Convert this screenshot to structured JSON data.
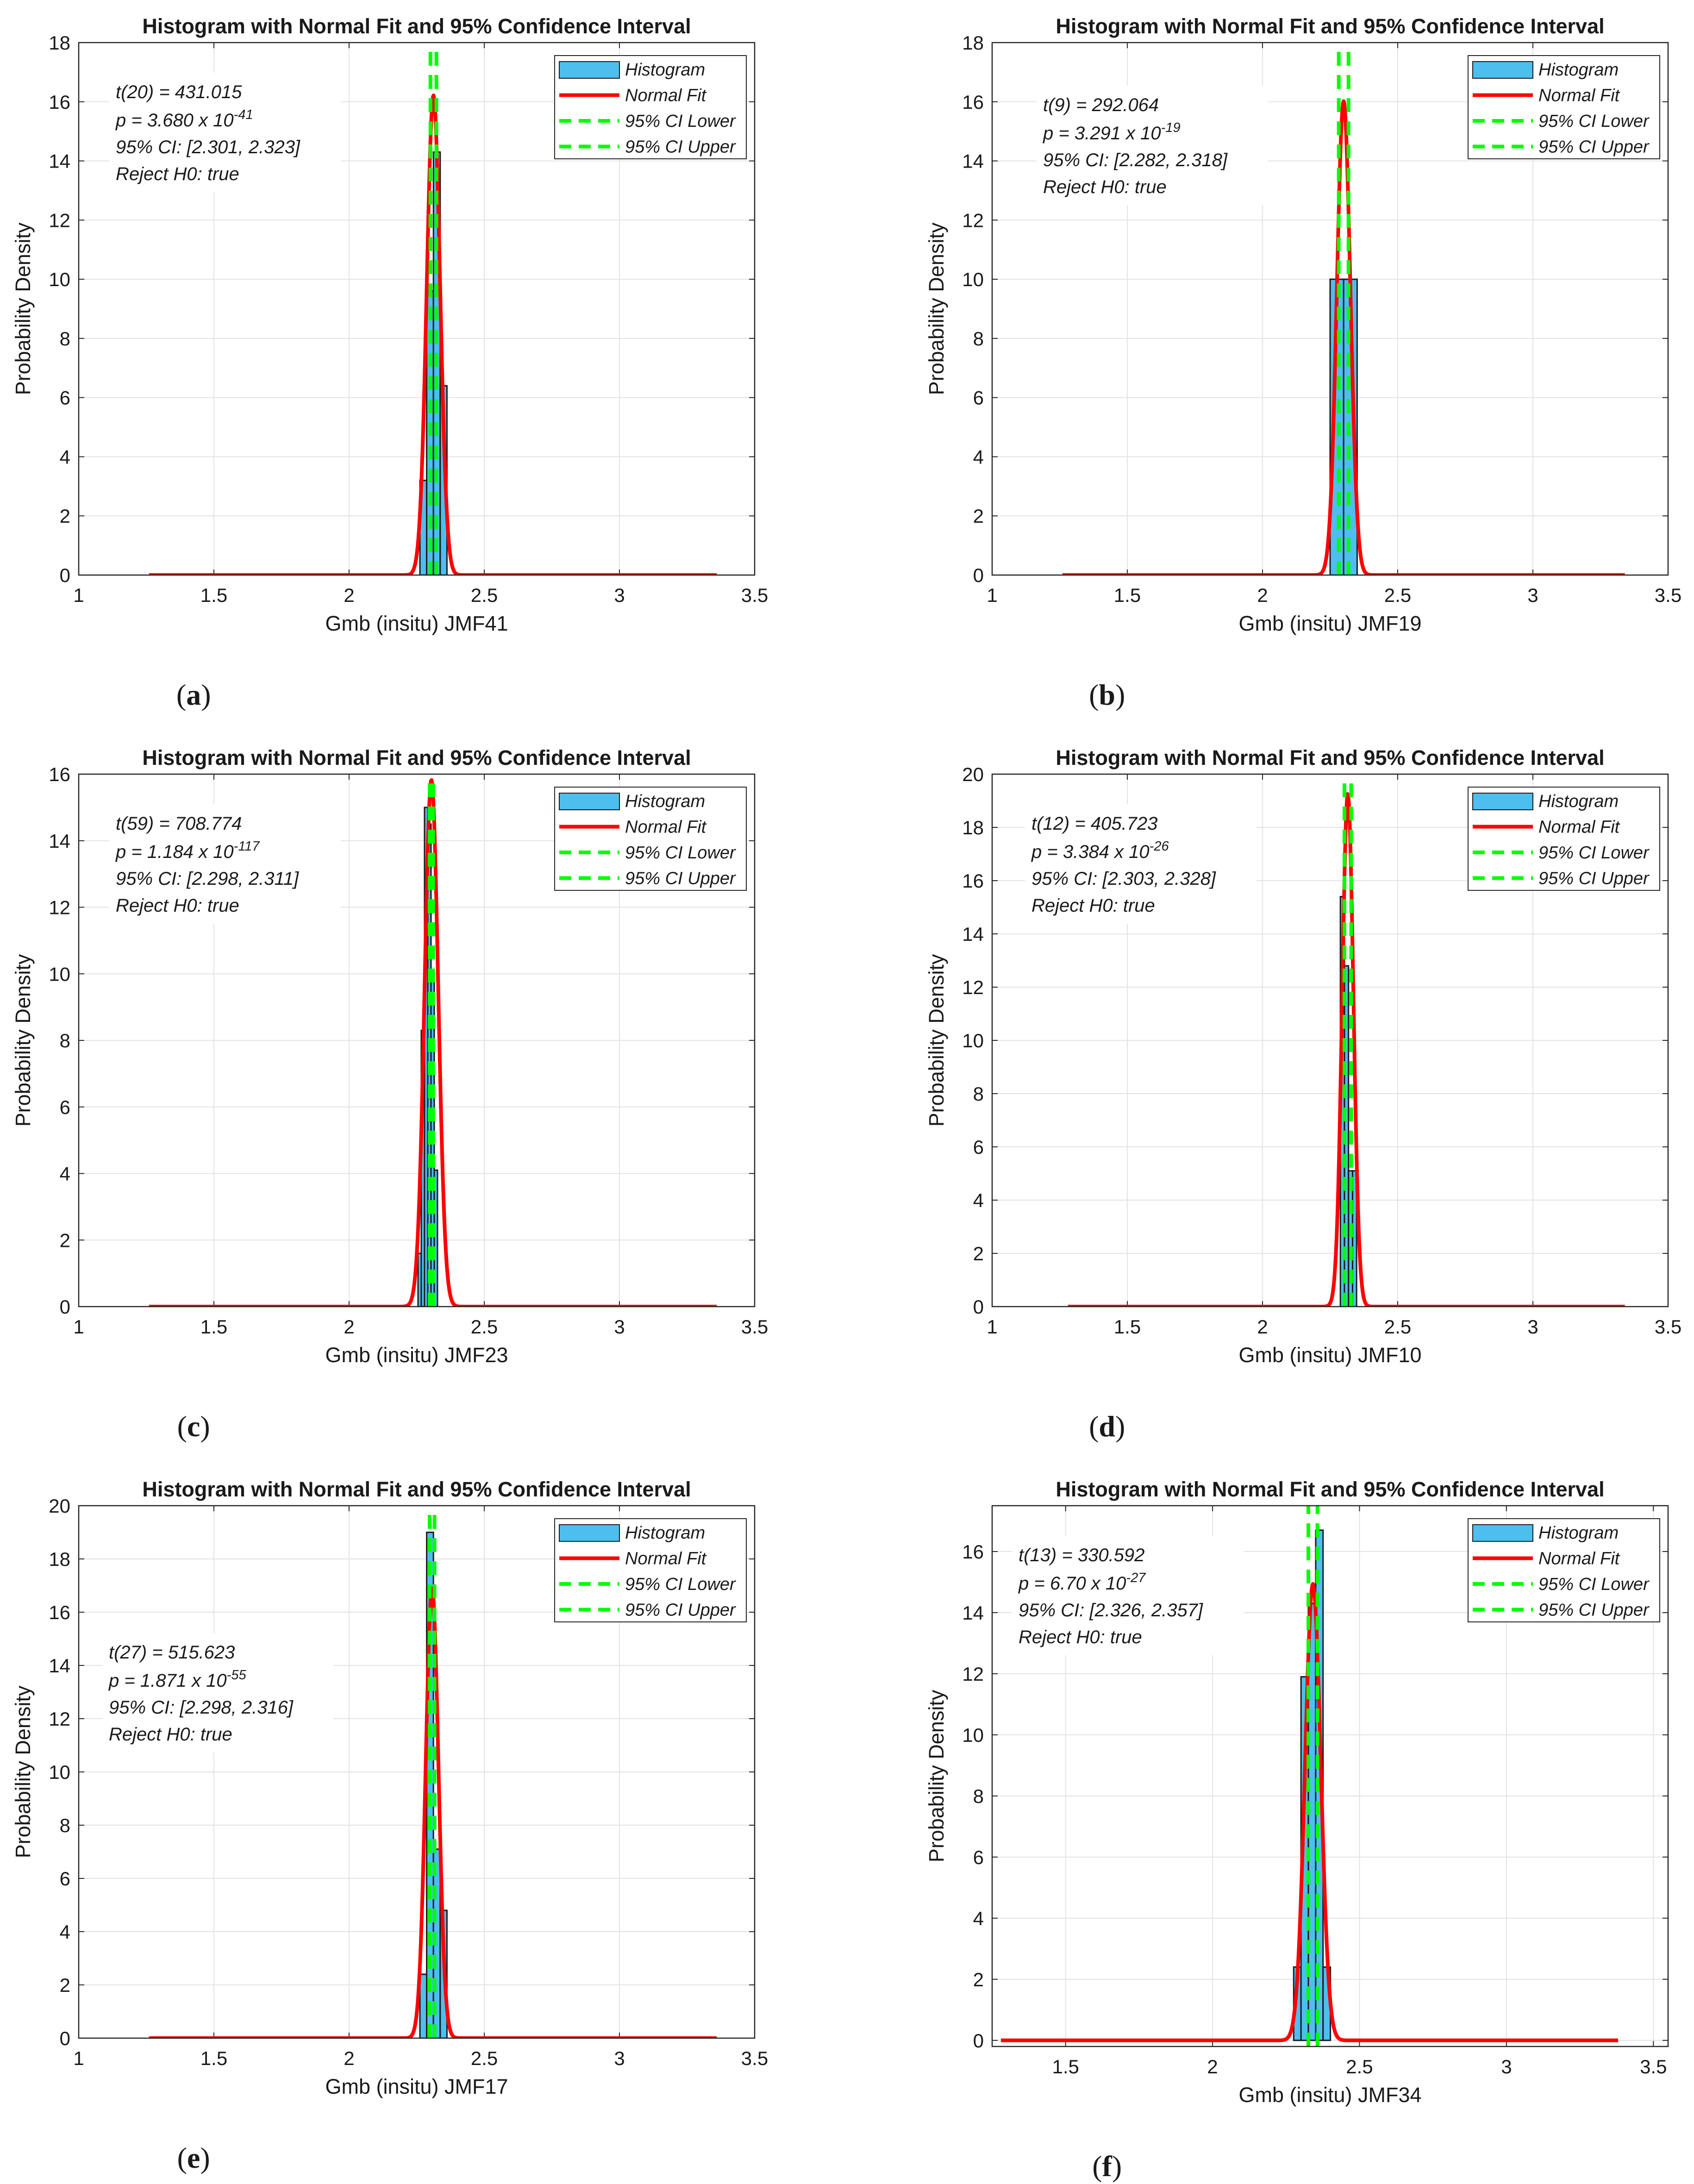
{
  "figure": {
    "panels": [
      {
        "label": "a",
        "ci_lower": 2.301,
        "ci_upper": 2.323
      },
      {
        "label": "b",
        "ci_lower": 2.282,
        "ci_upper": 2.318
      },
      {
        "label": "c",
        "ci_lower": 2.298,
        "ci_upper": 2.311
      },
      {
        "label": "d",
        "ci_lower": 2.303,
        "ci_upper": 2.328
      },
      {
        "label": "e",
        "ci_lower": 2.298,
        "ci_upper": 2.316
      },
      {
        "label": "f",
        "ci_lower": 2.326,
        "ci_upper": 2.357
      }
    ]
  },
  "chart_data": [
    {
      "type": "bar",
      "panel_label": "a",
      "title": "Histogram with Normal Fit and 95% Confidence Interval",
      "xlabel": "Gmb (insitu) JMF41",
      "ylabel": "Probability Density",
      "xlim": [
        1,
        3.5
      ],
      "ylim": [
        0,
        18
      ],
      "xticks": [
        "1",
        "1.5",
        "2",
        "2.5",
        "3",
        "3.5"
      ],
      "yticks": [
        "0",
        "2",
        "4",
        "6",
        "8",
        "10",
        "12",
        "14",
        "16",
        "18"
      ],
      "grid": true,
      "legend": {
        "position": "top-right",
        "entries": [
          "Histogram",
          "Normal Fit",
          "95% CI Lower",
          "95% CI Upper"
        ]
      },
      "annotation": {
        "t_label": "t(20) = 431.015",
        "p_prefix": "p = 3.680 x 10",
        "p_exp": "-41",
        "ci_text": "95% CI: [2.301, 2.323]",
        "reject_text": "Reject H0: true"
      },
      "histogram": {
        "bin_edges": [
          2.262,
          2.287,
          2.312,
          2.337,
          2.362
        ],
        "values": [
          3.2,
          9.6,
          14.3,
          6.4
        ]
      },
      "normal_fit": {
        "mean": 2.312,
        "sd": 0.0246,
        "x_range": [
          1.26,
          3.36
        ]
      },
      "ci": {
        "lower": 2.301,
        "upper": 2.323
      }
    },
    {
      "type": "bar",
      "panel_label": "b",
      "title": "Histogram with Normal Fit and 95% Confidence Interval",
      "xlabel": "Gmb (insitu) JMF19",
      "ylabel": "Probability Density",
      "xlim": [
        1,
        3.5
      ],
      "ylim": [
        0,
        18
      ],
      "xticks": [
        "1",
        "1.5",
        "2",
        "2.5",
        "3",
        "3.5"
      ],
      "yticks": [
        "0",
        "2",
        "4",
        "6",
        "8",
        "10",
        "12",
        "14",
        "16",
        "18"
      ],
      "grid": true,
      "legend": {
        "position": "top-right",
        "entries": [
          "Histogram",
          "Normal Fit",
          "95% CI Lower",
          "95% CI Upper"
        ]
      },
      "annotation": {
        "t_label": "t(9) = 292.064",
        "p_prefix": "p = 3.291 x 10",
        "p_exp": "-19",
        "ci_text": "95% CI: [2.282, 2.318]",
        "reject_text": "Reject H0: true"
      },
      "histogram": {
        "bin_edges": [
          2.25,
          2.3,
          2.35
        ],
        "values": [
          10.0,
          10.0
        ]
      },
      "normal_fit": {
        "mean": 2.3,
        "sd": 0.0249,
        "x_range": [
          1.26,
          3.34
        ]
      },
      "ci": {
        "lower": 2.282,
        "upper": 2.318
      }
    },
    {
      "type": "bar",
      "panel_label": "c",
      "title": "Histogram with Normal Fit and 95% Confidence Interval",
      "xlabel": "Gmb (insitu) JMF23",
      "ylabel": "Probability Density",
      "xlim": [
        1,
        3.5
      ],
      "ylim": [
        0,
        16
      ],
      "xticks": [
        "1",
        "1.5",
        "2",
        "2.5",
        "3",
        "3.5"
      ],
      "yticks": [
        "0",
        "2",
        "4",
        "6",
        "8",
        "10",
        "12",
        "14",
        "16"
      ],
      "grid": true,
      "legend": {
        "position": "top-right",
        "entries": [
          "Histogram",
          "Normal Fit",
          "95% CI Lower",
          "95% CI Upper"
        ]
      },
      "annotation": {
        "t_label": "t(59) = 708.774",
        "p_prefix": "p = 1.184 x 10",
        "p_exp": "-117",
        "ci_text": "95% CI: [2.298, 2.311]",
        "reject_text": "Reject H0: true"
      },
      "histogram": {
        "bin_edges": [
          2.255,
          2.267,
          2.279,
          2.291,
          2.303,
          2.315,
          2.327
        ],
        "values": [
          1.6,
          8.3,
          15.0,
          14.5,
          10.0,
          4.1
        ]
      },
      "normal_fit": {
        "mean": 2.3045,
        "sd": 0.0252,
        "x_range": [
          1.26,
          3.36
        ]
      },
      "ci": {
        "lower": 2.298,
        "upper": 2.311
      }
    },
    {
      "type": "bar",
      "panel_label": "d",
      "title": "Histogram with Normal Fit and 95% Confidence Interval",
      "xlabel": "Gmb (insitu) JMF10",
      "ylabel": "Probability Density",
      "xlim": [
        1,
        3.5
      ],
      "ylim": [
        0,
        20
      ],
      "xticks": [
        "1",
        "1.5",
        "2",
        "2.5",
        "3",
        "3.5"
      ],
      "yticks": [
        "0",
        "2",
        "4",
        "6",
        "8",
        "10",
        "12",
        "14",
        "16",
        "18",
        "20"
      ],
      "grid": true,
      "legend": {
        "position": "top-right",
        "entries": [
          "Histogram",
          "Normal Fit",
          "95% CI Lower",
          "95% CI Upper"
        ]
      },
      "annotation": {
        "t_label": "t(12) = 405.723",
        "p_prefix": "p = 3.384 x 10",
        "p_exp": "-26",
        "ci_text": "95% CI: [2.303, 2.328]",
        "reject_text": "Reject H0: true"
      },
      "histogram": {
        "bin_edges": [
          2.288,
          2.303,
          2.318,
          2.333,
          2.348
        ],
        "values": [
          15.4,
          12.8,
          5.1,
          5.1
        ]
      },
      "normal_fit": {
        "mean": 2.3155,
        "sd": 0.0207,
        "x_range": [
          1.28,
          3.34
        ]
      },
      "ci": {
        "lower": 2.303,
        "upper": 2.328
      }
    },
    {
      "type": "bar",
      "panel_label": "e",
      "title": "Histogram with Normal Fit and 95% Confidence Interval",
      "xlabel": "Gmb (insitu) JMF17",
      "ylabel": "Probability Density",
      "xlim": [
        1,
        3.5
      ],
      "ylim": [
        0,
        20
      ],
      "xticks": [
        "1",
        "1.5",
        "2",
        "2.5",
        "3",
        "3.5"
      ],
      "yticks": [
        "0",
        "2",
        "4",
        "6",
        "8",
        "10",
        "12",
        "14",
        "16",
        "18",
        "20"
      ],
      "grid": true,
      "legend": {
        "position": "top-right",
        "entries": [
          "Histogram",
          "Normal Fit",
          "95% CI Lower",
          "95% CI Upper"
        ]
      },
      "annotation": {
        "t_label": "t(27) = 515.623",
        "p_prefix": "p = 1.871 x 10",
        "p_exp": "-55",
        "ci_text": "95% CI: [2.298, 2.316]",
        "reject_text": "Reject H0: true"
      },
      "histogram": {
        "bin_edges": [
          2.262,
          2.287,
          2.312,
          2.337,
          2.362
        ],
        "values": [
          2.4,
          19.0,
          7.1,
          4.8
        ]
      },
      "normal_fit": {
        "mean": 2.307,
        "sd": 0.0236,
        "x_range": [
          1.26,
          3.36
        ]
      },
      "ci": {
        "lower": 2.298,
        "upper": 2.316
      }
    },
    {
      "type": "bar",
      "panel_label": "f",
      "title": "Histogram with Normal Fit and 95% Confidence Interval",
      "xlabel": "Gmb (insitu) JMF34",
      "ylabel": "Probability Density",
      "xlim": [
        1.25,
        3.55
      ],
      "ylim": [
        -0.2,
        17.5
      ],
      "xticks": [
        "1.5",
        "2",
        "2.5",
        "3",
        "3.5"
      ],
      "yticks": [
        "0",
        "2",
        "4",
        "6",
        "8",
        "10",
        "12",
        "14",
        "16"
      ],
      "grid": true,
      "legend": {
        "position": "top-right",
        "entries": [
          "Histogram",
          "Normal Fit",
          "95% CI Lower",
          "95% CI Upper"
        ]
      },
      "annotation": {
        "t_label": "t(13) = 330.592",
        "p_prefix": "p = 6.70 x 10",
        "p_exp": "-27",
        "ci_text": "95% CI: [2.326, 2.357]",
        "reject_text": "Reject H0: true"
      },
      "histogram": {
        "bin_edges": [
          2.276,
          2.301,
          2.326,
          2.351,
          2.376,
          2.401
        ],
        "values": [
          2.4,
          11.9,
          14.3,
          16.7,
          2.4
        ]
      },
      "normal_fit": {
        "mean": 2.3415,
        "sd": 0.0267,
        "x_range": [
          1.28,
          3.38
        ]
      },
      "ci": {
        "lower": 2.326,
        "upper": 2.357
      }
    }
  ]
}
